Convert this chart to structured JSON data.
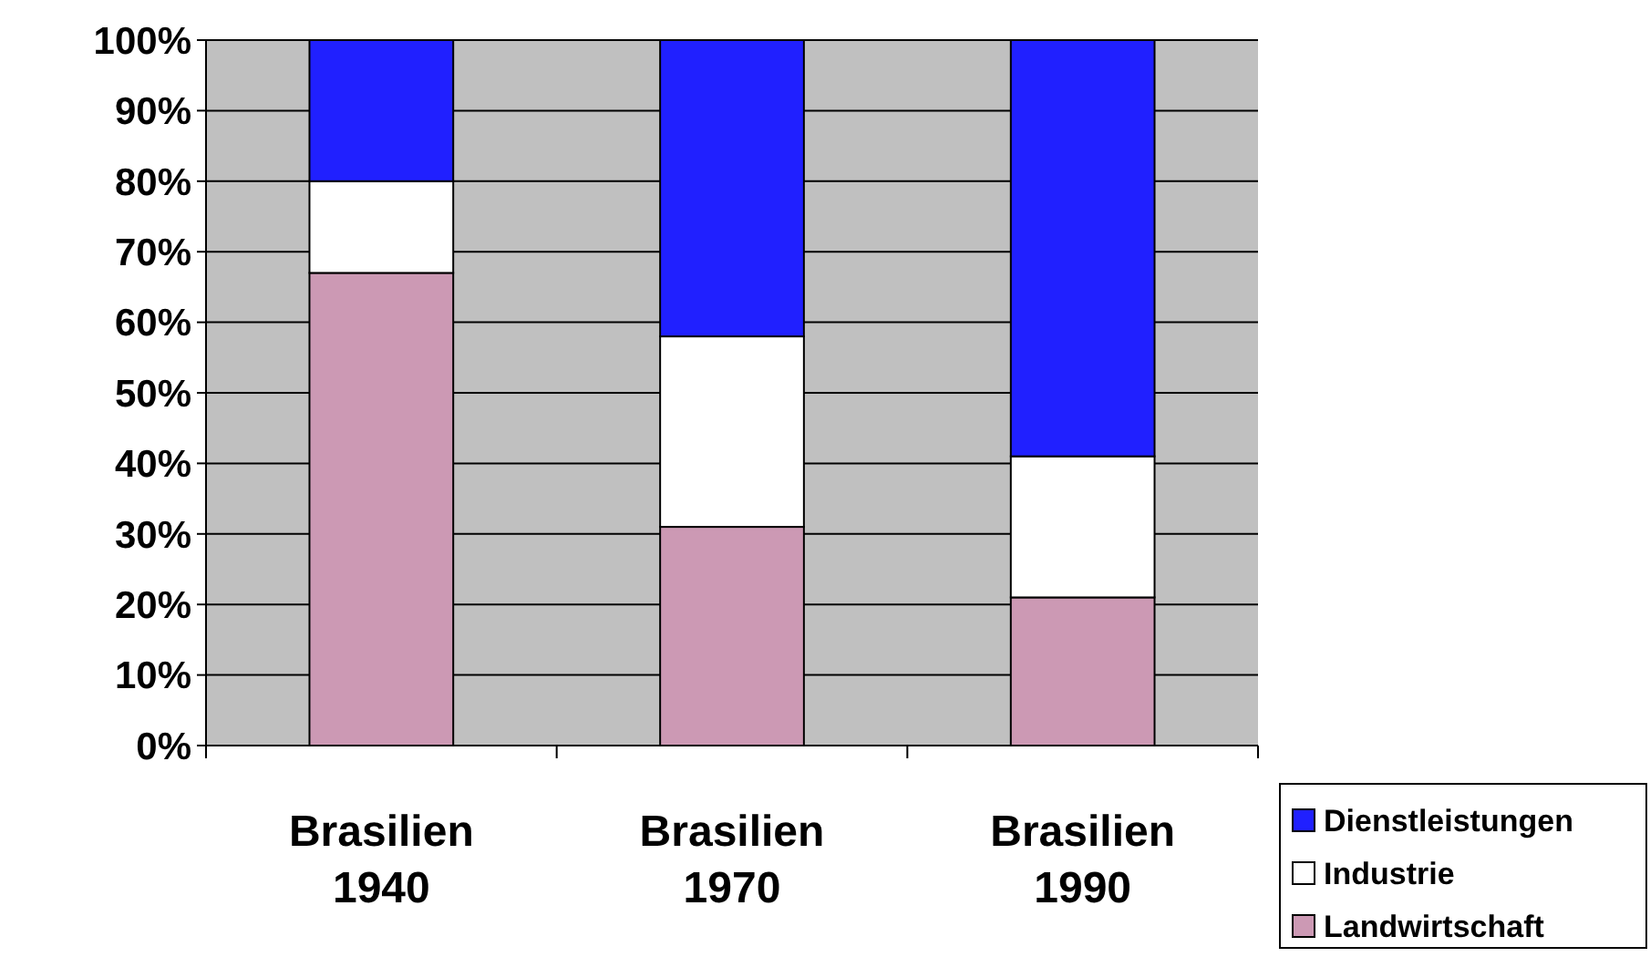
{
  "chart_data": {
    "type": "bar",
    "stacked": true,
    "categories": [
      "Brasilien 1940",
      "Brasilien 1970",
      "Brasilien 1990"
    ],
    "series": [
      {
        "name": "Landwirtschaft",
        "color": "#cc99b4",
        "values": [
          67,
          31,
          21
        ]
      },
      {
        "name": "Industrie",
        "color": "#ffffff",
        "values": [
          13,
          27,
          20
        ]
      },
      {
        "name": "Dienstleistungen",
        "color": "#2020ff",
        "values": [
          20,
          42,
          59
        ]
      }
    ],
    "ylim": [
      0,
      100
    ],
    "yticks": [
      {
        "value": 0,
        "label": "0%"
      },
      {
        "value": 10,
        "label": "10%"
      },
      {
        "value": 20,
        "label": "20%"
      },
      {
        "value": 30,
        "label": "30%"
      },
      {
        "value": 40,
        "label": "40%"
      },
      {
        "value": 50,
        "label": "50%"
      },
      {
        "value": 60,
        "label": "60%"
      },
      {
        "value": 70,
        "label": "70%"
      },
      {
        "value": 80,
        "label": "80%"
      },
      {
        "value": 90,
        "label": "90%"
      },
      {
        "value": 100,
        "label": "100%"
      }
    ],
    "grid": "y",
    "legend": "bottom right"
  }
}
